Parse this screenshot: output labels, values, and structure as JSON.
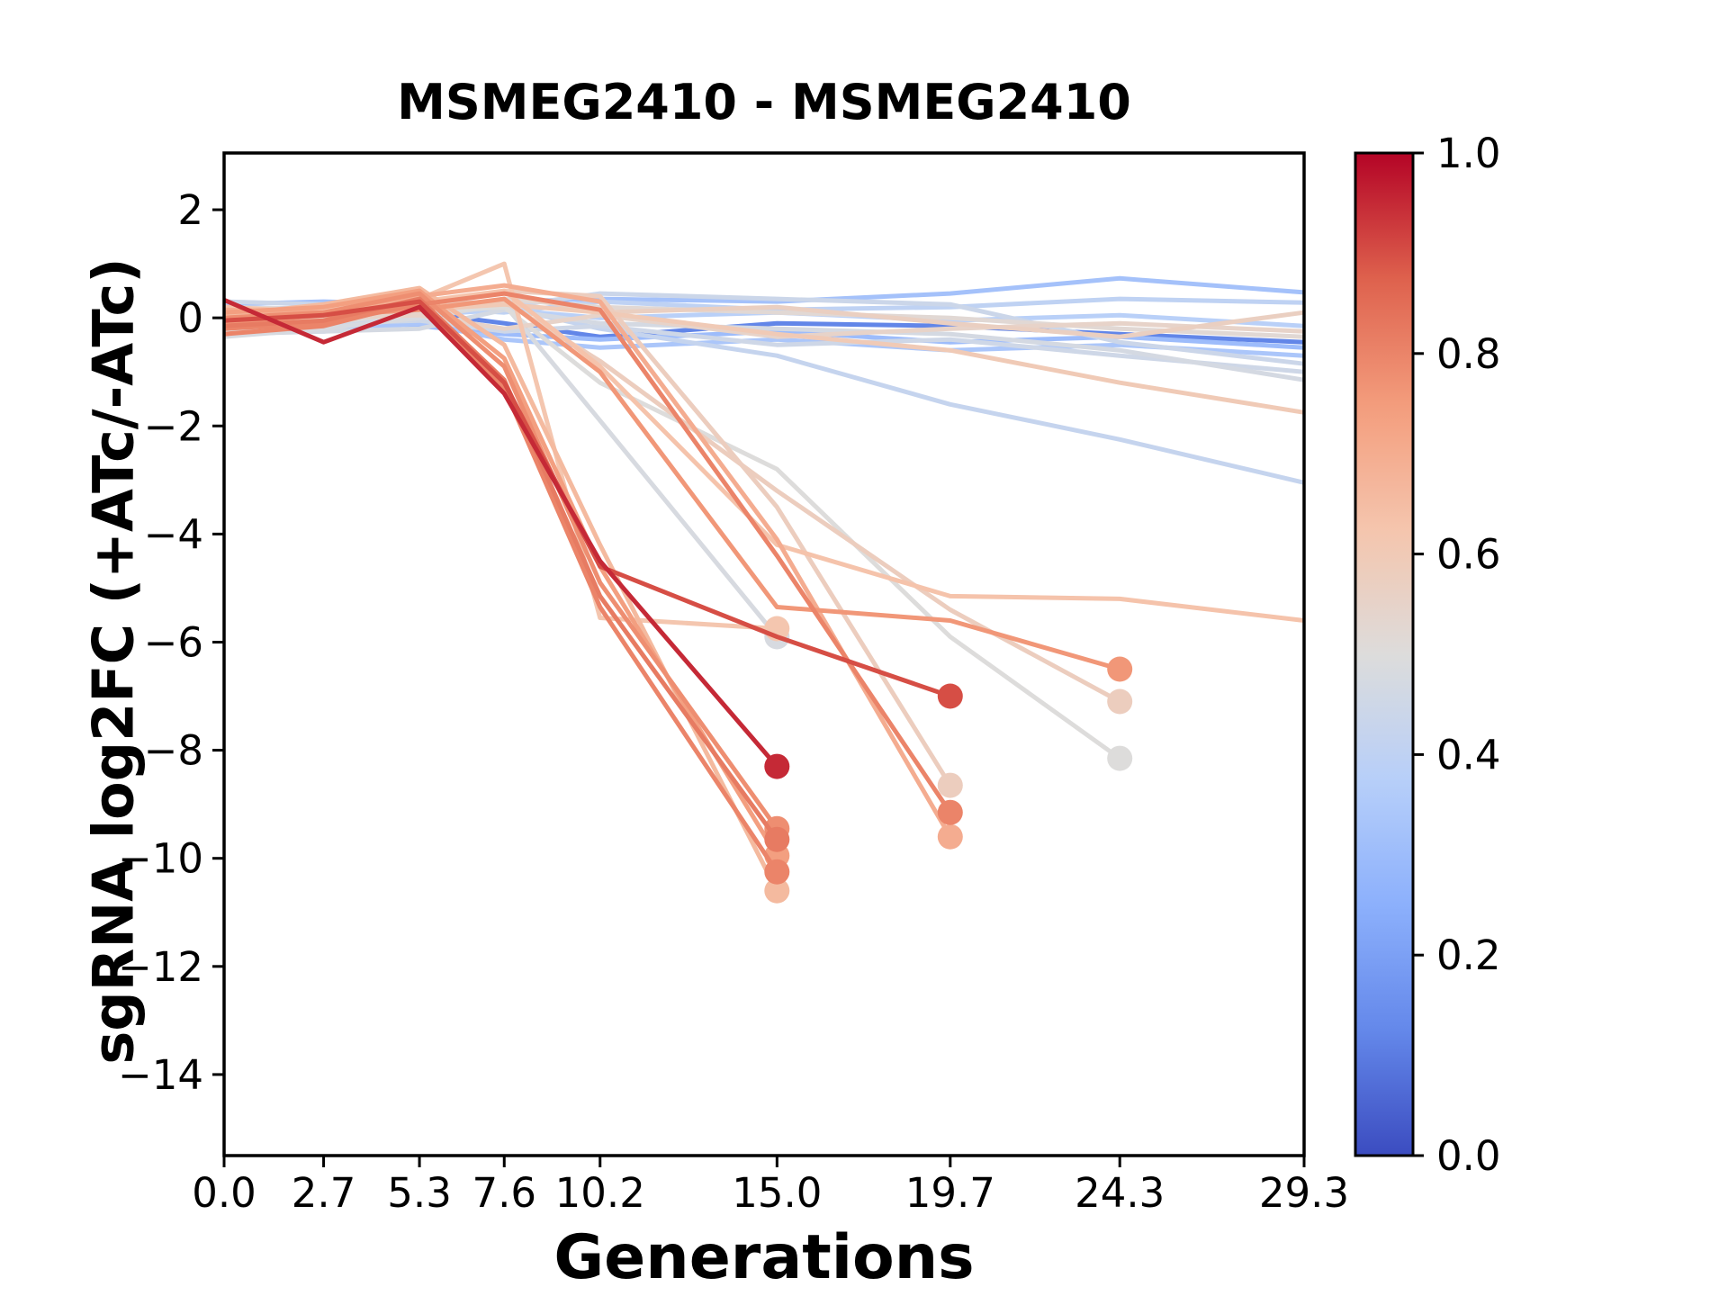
{
  "chart_data": {
    "type": "line",
    "title": "MSMEG2410 - MSMEG2410",
    "xlabel": "Generations",
    "ylabel": "sgRNA log2FC (+ATc/-ATc)",
    "xlim": [
      0.0,
      29.3
    ],
    "ylim": [
      -15.5,
      3.05
    ],
    "grid": false,
    "x_ticks": [
      {
        "value": 0.0,
        "label": "0.0"
      },
      {
        "value": 2.7,
        "label": "2.7"
      },
      {
        "value": 5.3,
        "label": "5.3"
      },
      {
        "value": 7.6,
        "label": "7.6"
      },
      {
        "value": 10.2,
        "label": "10.2"
      },
      {
        "value": 15.0,
        "label": "15.0"
      },
      {
        "value": 19.7,
        "label": "19.7"
      },
      {
        "value": 24.3,
        "label": "24.3"
      },
      {
        "value": 29.3,
        "label": "29.3"
      }
    ],
    "y_ticks": [
      {
        "value": 2,
        "label": "2"
      },
      {
        "value": 0,
        "label": "0"
      },
      {
        "value": -2,
        "label": "−2"
      },
      {
        "value": -4,
        "label": "−4"
      },
      {
        "value": -6,
        "label": "−6"
      },
      {
        "value": -8,
        "label": "−8"
      },
      {
        "value": -10,
        "label": "−10"
      },
      {
        "value": -12,
        "label": "−12"
      },
      {
        "value": -14,
        "label": "−14"
      }
    ],
    "colorbar": {
      "cmap": "coolwarm",
      "min": 0.0,
      "max": 1.0,
      "ticks": [
        {
          "value": 1.0,
          "label": "1.0"
        },
        {
          "value": 0.8,
          "label": "0.8"
        },
        {
          "value": 0.6,
          "label": "0.6"
        },
        {
          "value": 0.4,
          "label": "0.4"
        },
        {
          "value": 0.2,
          "label": "0.2"
        },
        {
          "value": 0.0,
          "label": "0.0"
        }
      ],
      "anchor_colors": [
        "#3b4cc0",
        "#6488ea",
        "#8cb0fc",
        "#b7cff9",
        "#dddcdb",
        "#f5c5ad",
        "#f39c7c",
        "#de614d",
        "#b40426"
      ]
    },
    "series": [
      {
        "c": 0.48,
        "end_marker": true,
        "points": [
          [
            0,
            -0.35
          ],
          [
            2.7,
            -0.2
          ],
          [
            5.3,
            0.0
          ],
          [
            7.6,
            0.25
          ],
          [
            10.2,
            -1.9
          ],
          [
            15,
            -5.9
          ]
        ]
      },
      {
        "c": 0.62,
        "end_marker": true,
        "points": [
          [
            0,
            -0.1
          ],
          [
            2.7,
            0.15
          ],
          [
            5.3,
            0.35
          ],
          [
            7.6,
            1.0
          ],
          [
            10.2,
            -5.55
          ],
          [
            15,
            -5.75
          ]
        ]
      },
      {
        "c": 0.95,
        "end_marker": true,
        "points": [
          [
            0,
            0.33
          ],
          [
            2.7,
            -0.45
          ],
          [
            5.3,
            0.2
          ],
          [
            7.6,
            -1.4
          ],
          [
            10.2,
            -4.5
          ],
          [
            15,
            -8.3
          ]
        ]
      },
      {
        "c": 0.78,
        "end_marker": true,
        "points": [
          [
            0,
            0.0
          ],
          [
            2.7,
            0.1
          ],
          [
            5.3,
            0.45
          ],
          [
            7.6,
            -0.9
          ],
          [
            10.2,
            -4.9
          ],
          [
            15,
            -9.45
          ]
        ]
      },
      {
        "c": 0.82,
        "end_marker": true,
        "points": [
          [
            0,
            -0.15
          ],
          [
            2.7,
            -0.05
          ],
          [
            5.3,
            0.35
          ],
          [
            7.6,
            -1.15
          ],
          [
            10.2,
            -5.15
          ],
          [
            15,
            -9.65
          ]
        ]
      },
      {
        "c": 0.74,
        "end_marker": true,
        "points": [
          [
            0,
            0.1
          ],
          [
            2.7,
            0.2
          ],
          [
            5.3,
            0.5
          ],
          [
            7.6,
            -0.75
          ],
          [
            10.2,
            -4.6
          ],
          [
            15,
            -9.95
          ]
        ]
      },
      {
        "c": 0.8,
        "end_marker": true,
        "points": [
          [
            0,
            -0.3
          ],
          [
            2.7,
            -0.15
          ],
          [
            5.3,
            0.3
          ],
          [
            7.6,
            -1.3
          ],
          [
            10.2,
            -5.35
          ],
          [
            15,
            -10.25
          ]
        ]
      },
      {
        "c": 0.66,
        "end_marker": true,
        "points": [
          [
            0,
            0.05
          ],
          [
            2.7,
            0.25
          ],
          [
            5.3,
            0.55
          ],
          [
            7.6,
            -0.5
          ],
          [
            10.2,
            -4.2
          ],
          [
            15,
            -10.6
          ]
        ]
      },
      {
        "c": 0.9,
        "end_marker": true,
        "points": [
          [
            0,
            -0.05
          ],
          [
            2.7,
            0.05
          ],
          [
            5.3,
            0.3
          ],
          [
            7.6,
            -1.2
          ],
          [
            10.2,
            -4.6
          ],
          [
            15,
            -5.9
          ],
          [
            19.7,
            -7.0
          ]
        ]
      },
      {
        "c": 0.58,
        "end_marker": true,
        "points": [
          [
            0,
            0.1
          ],
          [
            2.7,
            0.0
          ],
          [
            5.3,
            0.2
          ],
          [
            7.6,
            0.5
          ],
          [
            10.2,
            0.4
          ],
          [
            15,
            -3.5
          ],
          [
            19.7,
            -8.65
          ]
        ]
      },
      {
        "c": 0.8,
        "end_marker": true,
        "points": [
          [
            0,
            -0.2
          ],
          [
            2.7,
            -0.1
          ],
          [
            5.3,
            0.25
          ],
          [
            7.6,
            0.45
          ],
          [
            10.2,
            0.15
          ],
          [
            15,
            -4.4
          ],
          [
            19.7,
            -9.15
          ]
        ]
      },
      {
        "c": 0.7,
        "end_marker": true,
        "points": [
          [
            0,
            0.15
          ],
          [
            2.7,
            0.1
          ],
          [
            5.3,
            0.4
          ],
          [
            7.6,
            0.6
          ],
          [
            10.2,
            0.3
          ],
          [
            15,
            -4.1
          ],
          [
            19.7,
            -9.6
          ]
        ]
      },
      {
        "c": 0.76,
        "end_marker": true,
        "points": [
          [
            0,
            -0.1
          ],
          [
            2.7,
            0.05
          ],
          [
            5.3,
            0.15
          ],
          [
            7.6,
            0.35
          ],
          [
            10.2,
            -1.0
          ],
          [
            15,
            -5.35
          ],
          [
            19.7,
            -5.6
          ],
          [
            24.3,
            -6.5
          ]
        ]
      },
      {
        "c": 0.58,
        "end_marker": true,
        "points": [
          [
            0,
            0.05
          ],
          [
            2.7,
            0.15
          ],
          [
            5.3,
            0.25
          ],
          [
            7.6,
            0.3
          ],
          [
            10.2,
            -0.8
          ],
          [
            15,
            -3.2
          ],
          [
            19.7,
            -5.4
          ],
          [
            24.3,
            -7.1
          ]
        ]
      },
      {
        "c": 0.5,
        "end_marker": true,
        "points": [
          [
            0,
            -0.25
          ],
          [
            2.7,
            -0.1
          ],
          [
            5.3,
            0.1
          ],
          [
            7.6,
            0.2
          ],
          [
            10.2,
            -1.2
          ],
          [
            15,
            -2.8
          ],
          [
            19.7,
            -5.9
          ],
          [
            24.3,
            -8.15
          ]
        ]
      },
      {
        "c": 0.6,
        "end_marker": false,
        "points": [
          [
            0,
            0.2
          ],
          [
            2.7,
            0.1
          ],
          [
            5.3,
            0.15
          ],
          [
            7.6,
            0.25
          ],
          [
            10.2,
            0.1
          ],
          [
            15,
            -0.3
          ],
          [
            19.7,
            -0.6
          ],
          [
            24.3,
            -1.2
          ],
          [
            29.3,
            -1.75
          ]
        ]
      },
      {
        "c": 0.42,
        "end_marker": false,
        "points": [
          [
            0,
            0.2
          ],
          [
            2.7,
            0.15
          ],
          [
            5.3,
            0.1
          ],
          [
            7.6,
            0.2
          ],
          [
            10.2,
            -0.2
          ],
          [
            15,
            -0.7
          ],
          [
            19.7,
            -1.6
          ],
          [
            24.3,
            -2.25
          ],
          [
            29.3,
            -3.05
          ]
        ]
      },
      {
        "c": 0.32,
        "end_marker": false,
        "points": [
          [
            0,
            0.25
          ],
          [
            2.7,
            0.3
          ],
          [
            5.3,
            0.25
          ],
          [
            7.6,
            0.3
          ],
          [
            10.2,
            0.35
          ],
          [
            15,
            0.3
          ],
          [
            19.7,
            0.45
          ],
          [
            24.3,
            0.73
          ],
          [
            29.3,
            0.47
          ]
        ]
      },
      {
        "c": 0.4,
        "end_marker": false,
        "points": [
          [
            0,
            0.15
          ],
          [
            2.7,
            0.2
          ],
          [
            5.3,
            0.2
          ],
          [
            7.6,
            0.1
          ],
          [
            10.2,
            0.3
          ],
          [
            15,
            0.15
          ],
          [
            19.7,
            0.2
          ],
          [
            24.3,
            0.35
          ],
          [
            29.3,
            0.28
          ]
        ]
      },
      {
        "c": 0.3,
        "end_marker": false,
        "points": [
          [
            0,
            -0.1
          ],
          [
            2.7,
            0.0
          ],
          [
            5.3,
            -0.15
          ],
          [
            7.6,
            -0.3
          ],
          [
            10.2,
            -0.4
          ],
          [
            15,
            -0.25
          ],
          [
            19.7,
            -0.45
          ],
          [
            24.3,
            -0.35
          ],
          [
            29.3,
            -0.55
          ]
        ]
      },
      {
        "c": 0.34,
        "end_marker": false,
        "points": [
          [
            0,
            -0.2
          ],
          [
            2.7,
            -0.25
          ],
          [
            5.3,
            -0.1
          ],
          [
            7.6,
            -0.4
          ],
          [
            10.2,
            -0.55
          ],
          [
            15,
            -0.4
          ],
          [
            19.7,
            -0.6
          ],
          [
            24.3,
            -0.5
          ],
          [
            29.3,
            -0.7
          ]
        ]
      },
      {
        "c": 0.12,
        "end_marker": false,
        "points": [
          [
            0,
            0.05
          ],
          [
            2.7,
            -0.05
          ],
          [
            5.3,
            0.1
          ],
          [
            7.6,
            -0.1
          ],
          [
            10.2,
            -0.35
          ],
          [
            15,
            -0.1
          ],
          [
            19.7,
            -0.15
          ],
          [
            24.3,
            -0.3
          ],
          [
            29.3,
            -0.45
          ]
        ]
      },
      {
        "c": 0.44,
        "end_marker": false,
        "points": [
          [
            0,
            0.3
          ],
          [
            2.7,
            0.25
          ],
          [
            5.3,
            0.35
          ],
          [
            7.6,
            0.2
          ],
          [
            10.2,
            0.45
          ],
          [
            15,
            0.35
          ],
          [
            19.7,
            0.25
          ],
          [
            24.3,
            -0.45
          ],
          [
            29.3,
            -0.85
          ]
        ]
      },
      {
        "c": 0.47,
        "end_marker": false,
        "points": [
          [
            0,
            -0.3
          ],
          [
            2.7,
            -0.25
          ],
          [
            5.3,
            -0.2
          ],
          [
            7.6,
            0.15
          ],
          [
            10.2,
            -0.1
          ],
          [
            15,
            -0.2
          ],
          [
            19.7,
            -0.3
          ],
          [
            24.3,
            -0.6
          ],
          [
            29.3,
            -1.15
          ]
        ]
      },
      {
        "c": 0.52,
        "end_marker": false,
        "points": [
          [
            0,
            0.2
          ],
          [
            2.7,
            0.15
          ],
          [
            5.3,
            0.1
          ],
          [
            7.6,
            0.35
          ],
          [
            10.2,
            0.2
          ],
          [
            15,
            0.1
          ],
          [
            19.7,
            0.0
          ],
          [
            24.3,
            -0.2
          ],
          [
            29.3,
            -0.35
          ]
        ]
      },
      {
        "c": 0.57,
        "end_marker": false,
        "points": [
          [
            0,
            0.1
          ],
          [
            2.7,
            0.2
          ],
          [
            5.3,
            0.3
          ],
          [
            7.6,
            0.45
          ],
          [
            10.2,
            0.1
          ],
          [
            15,
            0.2
          ],
          [
            19.7,
            -0.1
          ],
          [
            24.3,
            -0.35
          ],
          [
            29.3,
            0.1
          ]
        ]
      },
      {
        "c": 0.55,
        "end_marker": false,
        "points": [
          [
            0,
            -0.05
          ],
          [
            2.7,
            0.0
          ],
          [
            5.3,
            0.05
          ],
          [
            7.6,
            -0.2
          ],
          [
            10.2,
            0.05
          ],
          [
            15,
            -0.35
          ],
          [
            19.7,
            -0.2
          ],
          [
            24.3,
            -0.1
          ],
          [
            29.3,
            -0.25
          ]
        ]
      },
      {
        "c": 0.63,
        "end_marker": false,
        "points": [
          [
            0,
            0.2
          ],
          [
            2.7,
            0.1
          ],
          [
            5.3,
            0.3
          ],
          [
            7.6,
            0.5
          ],
          [
            10.2,
            -0.9
          ],
          [
            15,
            -4.2
          ],
          [
            19.7,
            -5.15
          ],
          [
            24.3,
            -5.2
          ],
          [
            29.3,
            -5.6
          ]
        ]
      },
      {
        "c": 0.38,
        "end_marker": false,
        "points": [
          [
            0,
            0.1
          ],
          [
            2.7,
            0.15
          ],
          [
            5.3,
            0.05
          ],
          [
            7.6,
            0.15
          ],
          [
            10.2,
            0.0
          ],
          [
            15,
            0.1
          ],
          [
            19.7,
            -0.05
          ],
          [
            24.3,
            0.05
          ],
          [
            29.3,
            -0.15
          ]
        ]
      },
      {
        "c": 0.45,
        "end_marker": false,
        "points": [
          [
            0,
            -0.15
          ],
          [
            2.7,
            -0.1
          ],
          [
            5.3,
            -0.05
          ],
          [
            7.6,
            -0.25
          ],
          [
            10.2,
            -0.15
          ],
          [
            15,
            -0.5
          ],
          [
            19.7,
            -0.4
          ],
          [
            24.3,
            -0.7
          ],
          [
            29.3,
            -1.0
          ]
        ]
      }
    ]
  }
}
